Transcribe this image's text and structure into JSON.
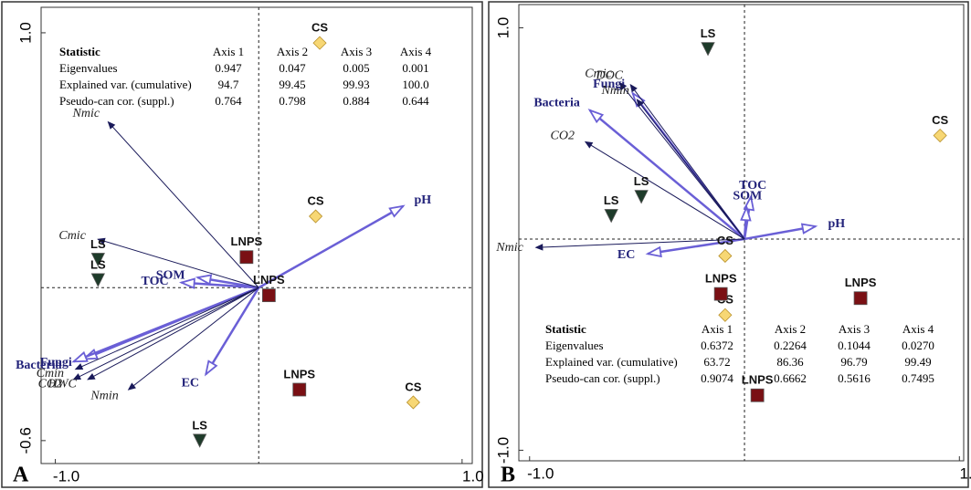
{
  "chart_data": [
    {
      "type": "biplot",
      "panel_label": "A",
      "xlim": [
        -1.07,
        1.05
      ],
      "ylim": [
        -0.69,
        1.1
      ],
      "xticks": [
        {
          "value": -1,
          "label": "-1.0"
        },
        {
          "value": 1,
          "label": "1.0"
        }
      ],
      "yticks": [
        {
          "value": -0.6,
          "label": "-0.6"
        },
        {
          "value": 1,
          "label": "1.0"
        }
      ],
      "zero_lines": true,
      "vectors": [
        {
          "name": "pH",
          "x": 0.71,
          "y": 0.32,
          "head": "open",
          "color": "#6a5fd6"
        },
        {
          "name": "SOM",
          "x": -0.3,
          "y": 0.04,
          "head": "open",
          "color": "#6a5fd6"
        },
        {
          "name": "TOC",
          "x": -0.38,
          "y": 0.02,
          "head": "open",
          "color": "#6a5fd6"
        },
        {
          "name": "Fungi",
          "x": -0.86,
          "y": -0.28,
          "head": "open",
          "color": "#6a5fd6"
        },
        {
          "name": "Bacteria",
          "x": -0.91,
          "y": -0.29,
          "head": "open",
          "color": "#6a5fd6"
        },
        {
          "name": "EC",
          "x": -0.26,
          "y": -0.34,
          "head": "open",
          "color": "#6a5fd6"
        },
        {
          "name": "Nmic",
          "x": -0.74,
          "y": 0.65,
          "head": "filled",
          "color": "#1a1a5a"
        },
        {
          "name": "Cmic",
          "x": -0.79,
          "y": 0.19,
          "head": "filled",
          "color": "#1a1a5a"
        },
        {
          "name": "Cmin",
          "x": -0.9,
          "y": -0.32,
          "head": "filled",
          "color": "#1a1a5a"
        },
        {
          "name": "CO2",
          "x": -0.91,
          "y": -0.36,
          "head": "filled",
          "color": "#1a1a5a"
        },
        {
          "name": "HWC",
          "x": -0.84,
          "y": -0.36,
          "head": "filled",
          "color": "#1a1a5a"
        },
        {
          "name": "Nmin",
          "x": -0.64,
          "y": -0.4,
          "head": "filled",
          "color": "#1a1a5a"
        }
      ],
      "points": [
        {
          "label": "CS",
          "x": 0.3,
          "y": 0.96,
          "shape": "diamond",
          "color": "#f7d774"
        },
        {
          "label": "CS",
          "x": 0.28,
          "y": 0.28,
          "shape": "diamond",
          "color": "#f7d774"
        },
        {
          "label": "CS",
          "x": 0.76,
          "y": -0.45,
          "shape": "diamond",
          "color": "#f7d774"
        },
        {
          "label": "LNPS",
          "x": -0.06,
          "y": 0.12,
          "shape": "square",
          "color": "#7a1014"
        },
        {
          "label": "LNPS",
          "x": 0.05,
          "y": -0.03,
          "shape": "square",
          "color": "#7a1014"
        },
        {
          "label": "LNPS",
          "x": 0.2,
          "y": -0.4,
          "shape": "square",
          "color": "#7a1014"
        },
        {
          "label": "LS",
          "x": -0.79,
          "y": 0.11,
          "shape": "triangle",
          "color": "#1e3b2a"
        },
        {
          "label": "LS",
          "x": -0.79,
          "y": 0.03,
          "shape": "triangle",
          "color": "#1e3b2a"
        },
        {
          "label": "LS",
          "x": -0.29,
          "y": -0.6,
          "shape": "triangle",
          "color": "#1e3b2a"
        }
      ],
      "statistics": {
        "header": [
          "Statistic",
          "Axis 1",
          "Axis 2",
          "Axis 3",
          "Axis 4"
        ],
        "rows": [
          [
            "Eigenvalues",
            "0.947",
            "0.047",
            "0.005",
            "0.001"
          ],
          [
            "Explained var. (cumulative)",
            "94.7",
            "99.45",
            "99.93",
            "100.0"
          ],
          [
            "Pseudo-can cor. (suppl.)",
            "0.764",
            "0.798",
            "0.884",
            "0.644"
          ]
        ]
      }
    },
    {
      "type": "biplot",
      "panel_label": "B",
      "xlim": [
        -1.05,
        1.02
      ],
      "ylim": [
        -1.05,
        1.11
      ],
      "xticks": [
        {
          "value": -1,
          "label": "-1.0"
        },
        {
          "value": 1,
          "label": "1.0"
        }
      ],
      "yticks": [
        {
          "value": -1,
          "label": "-1.0"
        },
        {
          "value": 1,
          "label": "1.0"
        }
      ],
      "zero_lines": true,
      "vectors": [
        {
          "name": "pH",
          "x": 0.33,
          "y": 0.06,
          "head": "open",
          "color": "#6a5fd6"
        },
        {
          "name": "TOC",
          "x": 0.03,
          "y": 0.2,
          "head": "open",
          "color": "#6a5fd6"
        },
        {
          "name": "SOM",
          "x": 0.01,
          "y": 0.15,
          "head": "open",
          "color": "#6a5fd6"
        },
        {
          "name": "EC",
          "x": -0.45,
          "y": -0.07,
          "head": "open",
          "color": "#6a5fd6"
        },
        {
          "name": "Bacteria",
          "x": -0.72,
          "y": 0.61,
          "head": "open",
          "color": "#6a5fd6"
        },
        {
          "name": "Fungi",
          "x": -0.52,
          "y": 0.69,
          "head": "open",
          "color": "#6a5fd6"
        },
        {
          "name": "Nmic",
          "x": -0.97,
          "y": -0.04,
          "head": "filled",
          "color": "#1a1a5a"
        },
        {
          "name": "CO2",
          "x": -0.74,
          "y": 0.46,
          "head": "filled",
          "color": "#1a1a5a"
        },
        {
          "name": "Cmic",
          "x": -0.58,
          "y": 0.74,
          "head": "filled",
          "color": "#1a1a5a"
        },
        {
          "name": "DOC",
          "x": -0.53,
          "y": 0.73,
          "head": "filled",
          "color": "#1a1a5a"
        },
        {
          "name": "Nmin",
          "x": -0.5,
          "y": 0.66,
          "head": "filled",
          "color": "#1a1a5a"
        }
      ],
      "points": [
        {
          "label": "LS",
          "x": -0.17,
          "y": 0.9,
          "shape": "triangle",
          "color": "#1e3b2a"
        },
        {
          "label": "LS",
          "x": -0.48,
          "y": 0.2,
          "shape": "triangle",
          "color": "#1e3b2a"
        },
        {
          "label": "LS",
          "x": -0.62,
          "y": 0.11,
          "shape": "triangle",
          "color": "#1e3b2a"
        },
        {
          "label": "CS",
          "x": 0.91,
          "y": 0.49,
          "shape": "diamond",
          "color": "#f7d774"
        },
        {
          "label": "CS",
          "x": -0.09,
          "y": -0.08,
          "shape": "diamond",
          "color": "#f7d774"
        },
        {
          "label": "CS",
          "x": -0.09,
          "y": -0.36,
          "shape": "diamond",
          "color": "#f7d774"
        },
        {
          "label": "LNPS",
          "x": -0.11,
          "y": -0.26,
          "shape": "square",
          "color": "#7a1014"
        },
        {
          "label": "LNPS",
          "x": 0.54,
          "y": -0.28,
          "shape": "square",
          "color": "#7a1014"
        },
        {
          "label": "LNPS",
          "x": 0.06,
          "y": -0.74,
          "shape": "square",
          "color": "#7a1014"
        }
      ],
      "statistics": {
        "header": [
          "Statistic",
          "Axis 1",
          "Axis 2",
          "Axis 3",
          "Axis 4"
        ],
        "rows": [
          [
            "Eigenvalues",
            "0.6372",
            "0.2264",
            "0.1044",
            "0.0270"
          ],
          [
            "Explained var. (cumulative)",
            "63.72",
            "86.36",
            "96.79",
            "99.49"
          ],
          [
            "Pseudo-can cor. (suppl.)",
            "0.9074",
            "0.6662",
            "0.5616",
            "0.7495"
          ]
        ]
      }
    }
  ]
}
